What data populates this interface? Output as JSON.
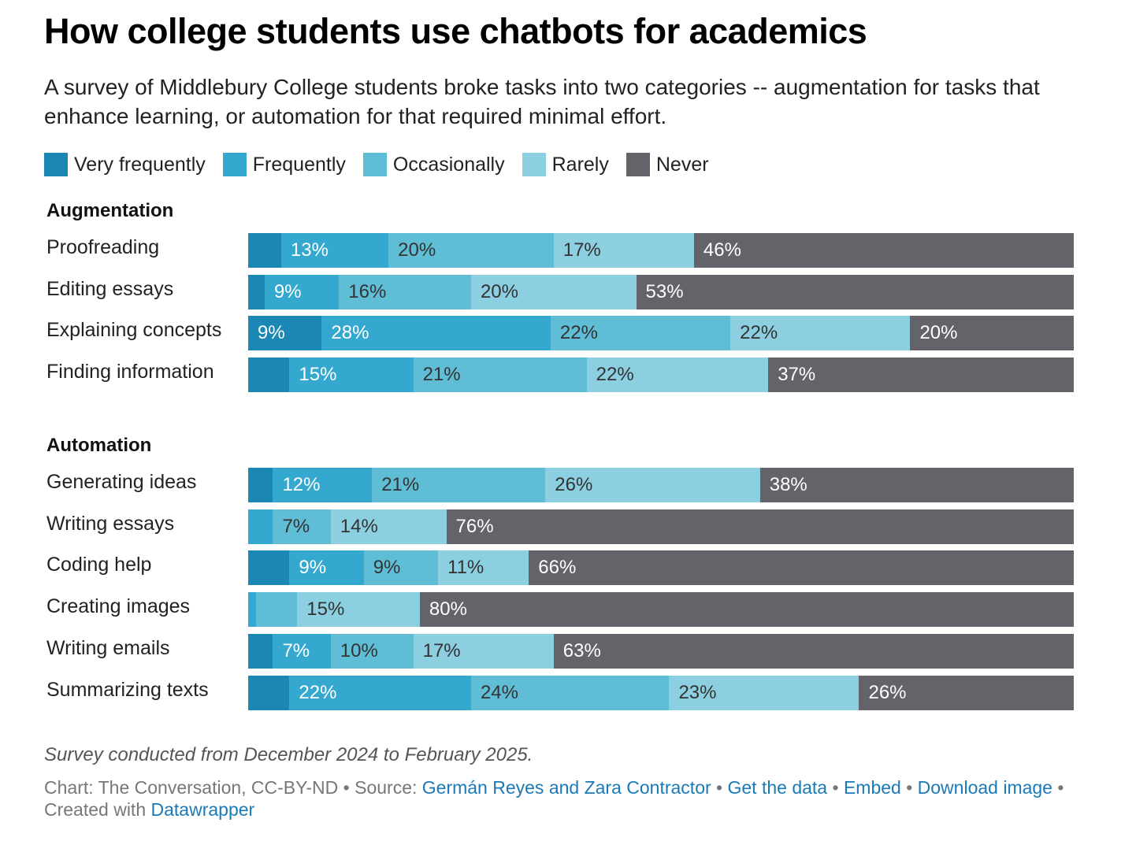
{
  "chart_data": {
    "type": "stacked-bar-horizontal",
    "title": "How college students use chatbots for academics",
    "subtitle": "A survey of Middlebury College students broke tasks into two categories -- augmentation for tasks that enhance learning, or automation for that required minimal effort.",
    "series_names": [
      "Very frequently",
      "Frequently",
      "Occasionally",
      "Rarely",
      "Never"
    ],
    "colors": [
      "#1a87b5",
      "#34a8cf",
      "#5fbdd6",
      "#8ccfe0",
      "#636369"
    ],
    "groups": [
      {
        "name": "Augmentation",
        "rows": [
          {
            "label": "Proofreading",
            "values": [
              4,
              13,
              20,
              17,
              46
            ],
            "labels": [
              "",
              "13%",
              "20%",
              "17%",
              "46%"
            ]
          },
          {
            "label": "Editing essays",
            "values": [
              2,
              9,
              16,
              20,
              53
            ],
            "labels": [
              "",
              "9%",
              "16%",
              "20%",
              "53%"
            ]
          },
          {
            "label": "Explaining concepts",
            "values": [
              9,
              28,
              22,
              22,
              20
            ],
            "labels": [
              "9%",
              "28%",
              "22%",
              "22%",
              "20%"
            ]
          },
          {
            "label": "Finding information",
            "values": [
              5,
              15,
              21,
              22,
              37
            ],
            "labels": [
              "",
              "15%",
              "21%",
              "22%",
              "37%"
            ]
          }
        ]
      },
      {
        "name": "Automation",
        "rows": [
          {
            "label": "Generating ideas",
            "values": [
              3,
              12,
              21,
              26,
              38
            ],
            "labels": [
              "",
              "12%",
              "21%",
              "26%",
              "38%"
            ]
          },
          {
            "label": "Writing essays",
            "values": [
              0,
              3,
              7,
              14,
              76
            ],
            "labels": [
              "",
              "",
              "7%",
              "14%",
              "76%"
            ]
          },
          {
            "label": "Coding help",
            "values": [
              5,
              9,
              9,
              11,
              66
            ],
            "labels": [
              "",
              "9%",
              "9%",
              "11%",
              "66%"
            ]
          },
          {
            "label": "Creating images",
            "values": [
              0,
              1,
              5,
              15,
              80
            ],
            "labels": [
              "",
              "",
              "",
              "15%",
              "80%"
            ]
          },
          {
            "label": "Writing emails",
            "values": [
              3,
              7,
              10,
              17,
              63
            ],
            "labels": [
              "",
              "7%",
              "10%",
              "17%",
              "63%"
            ]
          },
          {
            "label": "Summarizing texts",
            "values": [
              5,
              22,
              24,
              23,
              26
            ],
            "labels": [
              "",
              "22%",
              "24%",
              "23%",
              "26%"
            ]
          }
        ]
      }
    ]
  },
  "note": "Survey conducted from December 2024 to February 2025.",
  "footer": {
    "chart_credit": "Chart: The Conversation, CC-BY-ND",
    "source_prefix": "Source:",
    "source_link": "Germán Reyes and Zara Contractor",
    "get_data": "Get the data",
    "embed": "Embed",
    "download": "Download image",
    "created_prefix": "Created with",
    "datawrapper": "Datawrapper",
    "separator": "•"
  }
}
